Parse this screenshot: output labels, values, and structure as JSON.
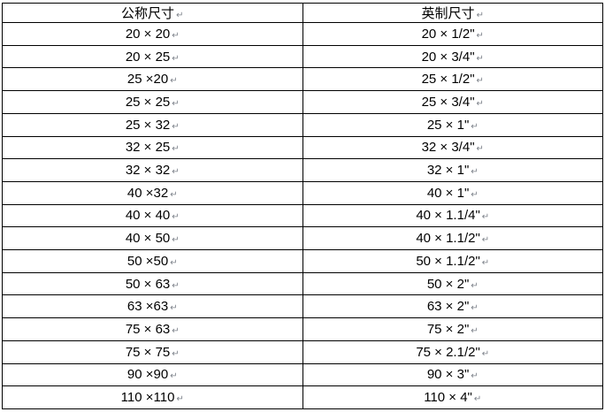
{
  "table": {
    "columns": [
      {
        "label": "公称尺寸"
      },
      {
        "label": "英制尺寸"
      }
    ],
    "rows": [
      [
        "20 × 20",
        "20 × 1/2\""
      ],
      [
        "20 × 25",
        "20 × 3/4\""
      ],
      [
        "25 ×20",
        "25 × 1/2\""
      ],
      [
        "25 × 25",
        "25 × 3/4\""
      ],
      [
        "25 × 32",
        "25 × 1\""
      ],
      [
        "32 × 25",
        "32 × 3/4\""
      ],
      [
        "32 × 32",
        "32 × 1\""
      ],
      [
        "40 ×32",
        "40 × 1\""
      ],
      [
        "40 × 40",
        "40 × 1.1/4\""
      ],
      [
        "40 × 50",
        "40 × 1.1/2\""
      ],
      [
        "50 ×50",
        "50 × 1.1/2\""
      ],
      [
        "50 × 63",
        "50 × 2\""
      ],
      [
        "63 ×63",
        "63 × 2\""
      ],
      [
        "75 × 63",
        "75 × 2\""
      ],
      [
        "75 × 75",
        "75 × 2.1/2\""
      ],
      [
        "90 ×90",
        "90 × 3\""
      ],
      [
        "110 ×110",
        "110 × 4\""
      ]
    ]
  },
  "marks": {
    "pilcrow": "↵"
  },
  "colors": {
    "border": "#000000",
    "text": "#000000",
    "paragraph_mark": "#7d828a",
    "background": "#ffffff"
  }
}
